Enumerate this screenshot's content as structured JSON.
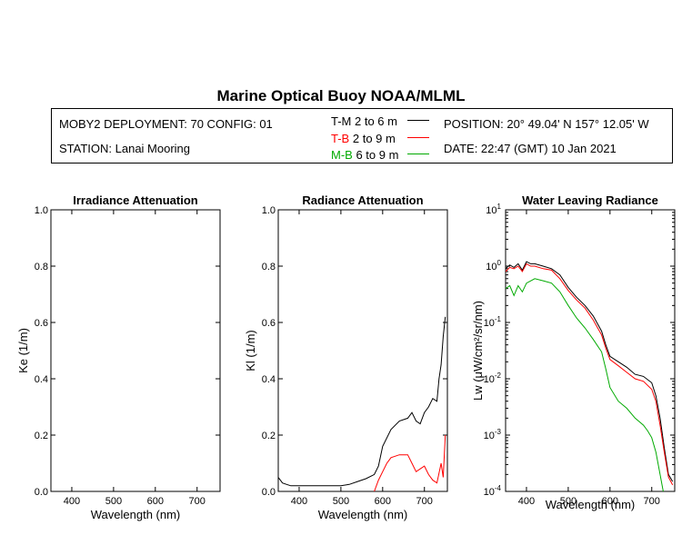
{
  "header": {
    "title": "Marine Optical Buoy NOAA/MLML",
    "deployment": "MOBY2 DEPLOYMENT: 70 CONFIG: 01",
    "station": "STATION: Lanai Mooring",
    "position": "POSITION: 20° 49.04' N   157° 12.05' W",
    "date": "DATE: 22:47 (GMT) 10 Jan 2021",
    "legend": [
      {
        "code": "T-M",
        "range": "2 to 6  m",
        "color": "#000000"
      },
      {
        "code": "T-B",
        "range": "2 to 9  m",
        "color": "#ff0000"
      },
      {
        "code": "M-B",
        "range": "6 to 9  m",
        "color": "#00aa00"
      }
    ]
  },
  "chart_data": [
    {
      "type": "line",
      "title": "Irradiance Attenuation",
      "xlabel": "Wavelength (nm)",
      "ylabel": "Ke  (1/m)",
      "xlim": [
        350,
        755
      ],
      "ylim": [
        0,
        1.0
      ],
      "xticks": [
        "400",
        "500",
        "600",
        "700"
      ],
      "yticks": [
        "0.0",
        "0.2",
        "0.4",
        "0.6",
        "0.8",
        "1.0"
      ],
      "series": []
    },
    {
      "type": "line",
      "title": "Radiance Attenuation",
      "xlabel": "Wavelength (nm)",
      "ylabel": "Kl  (1/m)",
      "xlim": [
        350,
        755
      ],
      "ylim": [
        0,
        1.0
      ],
      "xticks": [
        "400",
        "500",
        "600",
        "700"
      ],
      "yticks": [
        "0.0",
        "0.2",
        "0.4",
        "0.6",
        "0.8",
        "1.0"
      ],
      "series": [
        {
          "color": "#000000",
          "x": [
            350,
            355,
            360,
            370,
            380,
            400,
            450,
            500,
            520,
            540,
            560,
            580,
            590,
            600,
            620,
            640,
            660,
            670,
            680,
            690,
            700,
            710,
            720,
            730,
            735,
            740,
            745,
            750
          ],
          "y": [
            0.05,
            0.04,
            0.03,
            0.025,
            0.02,
            0.02,
            0.02,
            0.02,
            0.025,
            0.035,
            0.045,
            0.06,
            0.09,
            0.16,
            0.22,
            0.25,
            0.26,
            0.28,
            0.25,
            0.24,
            0.28,
            0.3,
            0.33,
            0.32,
            0.4,
            0.45,
            0.55,
            0.62
          ]
        },
        {
          "color": "#ff0000",
          "x": [
            580,
            590,
            600,
            610,
            620,
            640,
            660,
            670,
            680,
            690,
            700,
            710,
            720,
            730,
            740,
            745,
            750
          ],
          "y": [
            0.0,
            0.04,
            0.07,
            0.1,
            0.12,
            0.13,
            0.13,
            0.1,
            0.07,
            0.08,
            0.09,
            0.06,
            0.04,
            0.03,
            0.1,
            0.05,
            0.2
          ]
        }
      ]
    },
    {
      "type": "line",
      "title": "Water Leaving Radiance",
      "xlabel": "Wavelength (nm)",
      "ylabel": "Lw  (μW/cm²/sr/nm)",
      "yscale": "log",
      "xlim": [
        350,
        755
      ],
      "ylim": [
        0.0001,
        10
      ],
      "xticks": [
        "400",
        "500",
        "600",
        "700"
      ],
      "yticks": [
        {
          "base": "10",
          "exp": "1"
        },
        {
          "base": "10",
          "exp": "0"
        },
        {
          "base": "10",
          "exp": "-1"
        },
        {
          "base": "10",
          "exp": "-2"
        },
        {
          "base": "10",
          "exp": "-3"
        },
        {
          "base": "10",
          "exp": "-4"
        }
      ],
      "series": [
        {
          "color": "#000000",
          "x": [
            350,
            360,
            370,
            380,
            390,
            400,
            410,
            420,
            440,
            460,
            480,
            500,
            520,
            540,
            560,
            580,
            590,
            600,
            620,
            640,
            660,
            680,
            700,
            710,
            720,
            730,
            740,
            750
          ],
          "y": [
            0.9,
            1.05,
            0.95,
            1.1,
            0.85,
            1.2,
            1.1,
            1.1,
            1.0,
            0.9,
            0.7,
            0.42,
            0.28,
            0.2,
            0.13,
            0.07,
            0.04,
            0.025,
            0.02,
            0.016,
            0.012,
            0.011,
            0.0085,
            0.005,
            0.002,
            0.0006,
            0.0002,
            0.00015
          ]
        },
        {
          "color": "#ff0000",
          "x": [
            350,
            360,
            370,
            380,
            390,
            400,
            410,
            420,
            440,
            460,
            480,
            500,
            520,
            540,
            560,
            580,
            590,
            600,
            620,
            640,
            660,
            680,
            700,
            710,
            720,
            730,
            740,
            750
          ],
          "y": [
            0.8,
            0.95,
            0.9,
            1.0,
            0.8,
            1.1,
            1.0,
            1.0,
            0.9,
            0.85,
            0.6,
            0.37,
            0.25,
            0.18,
            0.11,
            0.06,
            0.035,
            0.022,
            0.017,
            0.013,
            0.01,
            0.009,
            0.0065,
            0.004,
            0.0015,
            0.0005,
            0.00018,
            0.00013
          ]
        },
        {
          "color": "#00aa00",
          "x": [
            350,
            360,
            370,
            380,
            390,
            400,
            420,
            440,
            460,
            480,
            500,
            520,
            540,
            560,
            580,
            590,
            600,
            620,
            640,
            660,
            680,
            690,
            700,
            710,
            720,
            730
          ],
          "y": [
            0.4,
            0.45,
            0.3,
            0.45,
            0.35,
            0.5,
            0.6,
            0.55,
            0.5,
            0.35,
            0.2,
            0.12,
            0.08,
            0.05,
            0.03,
            0.015,
            0.007,
            0.004,
            0.003,
            0.002,
            0.0015,
            0.0012,
            0.0009,
            0.0005,
            0.0002,
            8e-05
          ]
        }
      ]
    }
  ]
}
